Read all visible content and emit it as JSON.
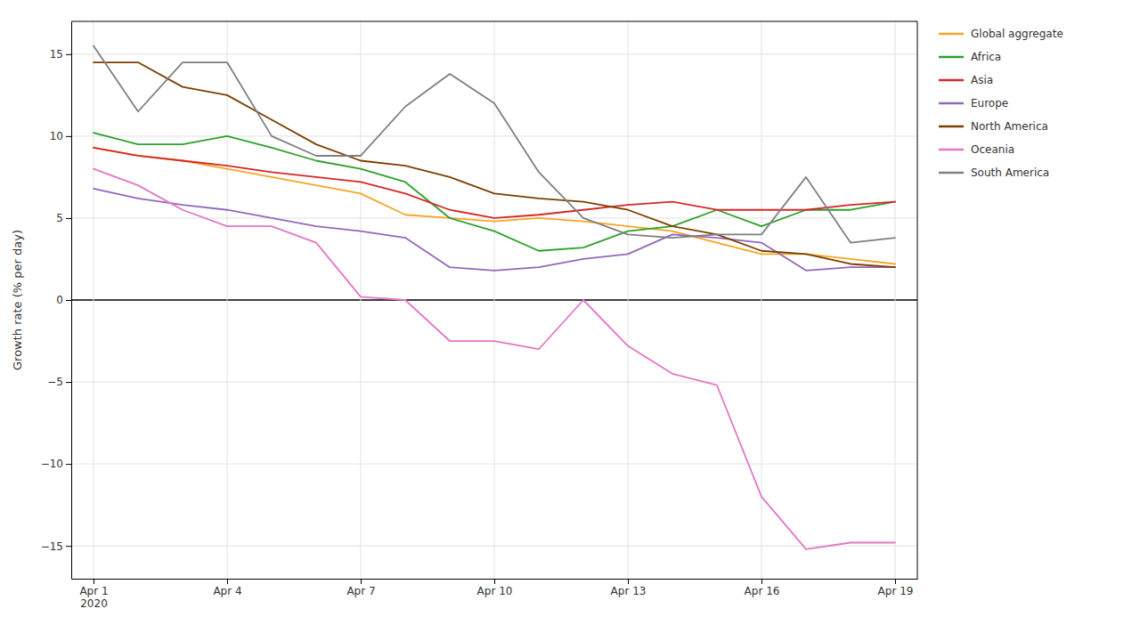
{
  "chart_data": {
    "type": "line",
    "categories": [
      "Apr 1\n2020",
      null,
      null,
      "Apr 4",
      null,
      null,
      "Apr 7",
      null,
      null,
      "Apr 10",
      null,
      null,
      "Apr 13",
      null,
      null,
      "Apr 16",
      null,
      null,
      "Apr 19"
    ],
    "series": [
      {
        "name": "Global aggregate",
        "color": "#f5a623",
        "values": [
          9.3,
          8.8,
          8.5,
          8.0,
          7.5,
          7.0,
          6.5,
          5.2,
          5.0,
          4.8,
          5.0,
          4.8,
          4.5,
          4.2,
          3.5,
          2.8,
          2.8,
          2.5,
          2.2
        ]
      },
      {
        "name": "Africa",
        "color": "#2ca02c",
        "values": [
          10.2,
          9.5,
          9.5,
          10.0,
          9.3,
          8.5,
          8.0,
          7.2,
          5.0,
          4.2,
          3.0,
          3.2,
          4.2,
          4.5,
          5.5,
          4.5,
          5.5,
          5.5,
          6.0
        ]
      },
      {
        "name": "Asia",
        "color": "#d62728",
        "values": [
          9.3,
          8.8,
          8.5,
          8.2,
          7.8,
          7.5,
          7.2,
          6.5,
          5.5,
          5.0,
          5.2,
          5.5,
          5.8,
          6.0,
          5.5,
          5.5,
          5.5,
          5.8,
          6.0
        ]
      },
      {
        "name": "Europe",
        "color": "#9467bd",
        "values": [
          6.8,
          6.2,
          5.8,
          5.5,
          5.0,
          4.5,
          4.2,
          3.8,
          2.0,
          1.8,
          2.0,
          2.5,
          2.8,
          4.0,
          3.8,
          3.5,
          1.8,
          2.0,
          2.0
        ]
      },
      {
        "name": "North America",
        "color": "#7B3F00",
        "values": [
          14.5,
          14.5,
          13.0,
          12.5,
          11.0,
          9.5,
          8.5,
          8.2,
          7.5,
          6.5,
          6.2,
          6.0,
          5.5,
          4.5,
          4.0,
          3.0,
          2.8,
          2.2,
          2.0
        ]
      },
      {
        "name": "Oceania",
        "color": "#e377c2",
        "values": [
          8.0,
          7.0,
          5.5,
          4.5,
          4.5,
          3.5,
          0.2,
          0.0,
          -2.5,
          -2.5,
          -3.0,
          0.0,
          -2.8,
          -4.5,
          -5.2,
          -12.0,
          -15.2,
          -14.8,
          -14.8
        ]
      },
      {
        "name": "South America",
        "color": "#7f7f7f",
        "values": [
          15.5,
          11.5,
          14.5,
          14.5,
          10.0,
          8.8,
          8.8,
          11.8,
          13.8,
          12.0,
          7.8,
          5.0,
          4.0,
          3.8,
          4.0,
          4.0,
          7.5,
          3.5,
          3.8
        ]
      }
    ],
    "ylabel": "Growth rate (% per day)",
    "ylim": [
      -17,
      17
    ],
    "yticks": [
      {
        "value": -15,
        "label": "−15"
      },
      {
        "value": -10,
        "label": "−10"
      },
      {
        "value": -5,
        "label": "−5"
      },
      0,
      5,
      10,
      15
    ],
    "grid": true,
    "legend": "right"
  }
}
